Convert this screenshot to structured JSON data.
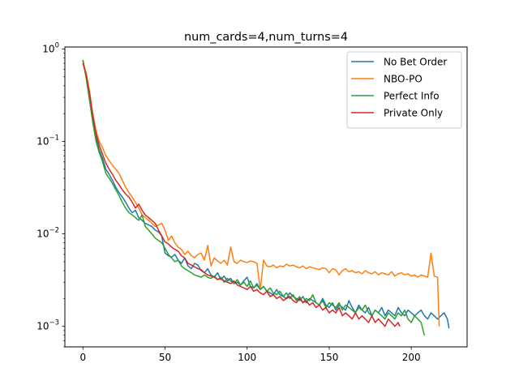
{
  "chart_data": {
    "type": "line",
    "title": "num_cards=4,num_turns=4",
    "xlabel": "",
    "ylabel": "",
    "xlim": [
      -11,
      234
    ],
    "ylim": [
      0.0006,
      1.05
    ],
    "yscale": "log",
    "grid": false,
    "legend_position": "top-right",
    "x_ticks": [
      {
        "value": 0,
        "label": "0"
      },
      {
        "value": 50,
        "label": "50"
      },
      {
        "value": 100,
        "label": "100"
      },
      {
        "value": 150,
        "label": "150"
      },
      {
        "value": 200,
        "label": "200"
      }
    ],
    "y_ticks": [
      {
        "value": 0.001,
        "base": "10",
        "exp": "−3"
      },
      {
        "value": 0.01,
        "base": "10",
        "exp": "−2"
      },
      {
        "value": 0.1,
        "base": "10",
        "exp": "−1"
      },
      {
        "value": 1,
        "base": "10",
        "exp": "0"
      }
    ],
    "series": [
      {
        "name": "No Bet Order",
        "color": "#1f77b4",
        "x": [
          0,
          2,
          4,
          6,
          8,
          10,
          12,
          14,
          16,
          18,
          20,
          22,
          24,
          26,
          28,
          30,
          32,
          34,
          36,
          38,
          40,
          42,
          44,
          46,
          48,
          50,
          52,
          54,
          56,
          58,
          60,
          62,
          64,
          66,
          68,
          70,
          72,
          74,
          76,
          78,
          80,
          82,
          84,
          86,
          88,
          90,
          92,
          94,
          96,
          98,
          100,
          102,
          104,
          106,
          108,
          110,
          112,
          114,
          116,
          118,
          120,
          122,
          124,
          126,
          128,
          130,
          132,
          134,
          136,
          138,
          140,
          142,
          144,
          146,
          148,
          150,
          152,
          154,
          156,
          158,
          160,
          162,
          164,
          166,
          168,
          170,
          172,
          174,
          176,
          178,
          180,
          182,
          184,
          186,
          188,
          190,
          192,
          194,
          196,
          198,
          200,
          202,
          204,
          206,
          208,
          210,
          212,
          214,
          216,
          218,
          220,
          222,
          223
        ],
        "y": [
          0.75,
          0.5,
          0.3,
          0.18,
          0.11,
          0.08,
          0.065,
          0.05,
          0.044,
          0.038,
          0.032,
          0.028,
          0.025,
          0.022,
          0.019,
          0.017,
          0.018,
          0.015,
          0.014,
          0.013,
          0.0125,
          0.012,
          0.011,
          0.0105,
          0.0095,
          0.0062,
          0.0058,
          0.0056,
          0.006,
          0.0052,
          0.0048,
          0.0055,
          0.0045,
          0.0042,
          0.0048,
          0.0046,
          0.004,
          0.0038,
          0.0042,
          0.0036,
          0.0034,
          0.0038,
          0.0032,
          0.0035,
          0.0031,
          0.0033,
          0.0029,
          0.003,
          0.0028,
          0.0031,
          0.0034,
          0.0027,
          0.0026,
          0.0029,
          0.0025,
          0.0027,
          0.0024,
          0.0023,
          0.0022,
          0.0025,
          0.0022,
          0.0021,
          0.002,
          0.0023,
          0.0021,
          0.002,
          0.0019,
          0.0021,
          0.0018,
          0.002,
          0.0019,
          0.0018,
          0.0017,
          0.002,
          0.0017,
          0.0016,
          0.0018,
          0.0015,
          0.0017,
          0.0016,
          0.0015,
          0.0019,
          0.0016,
          0.0014,
          0.0017,
          0.0015,
          0.0014,
          0.0016,
          0.0013,
          0.0015,
          0.0014,
          0.0016,
          0.0013,
          0.0015,
          0.0014,
          0.0013,
          0.0016,
          0.0014,
          0.0013,
          0.0015,
          0.0014,
          0.0013,
          0.0014,
          0.0015,
          0.0013,
          0.0012,
          0.0014,
          0.0013,
          0.0012,
          0.0013,
          0.0014,
          0.0012,
          0.00095
        ]
      },
      {
        "name": "NBO-PO",
        "color": "#ff7f0e",
        "x": [
          0,
          2,
          4,
          6,
          8,
          10,
          12,
          14,
          16,
          18,
          20,
          22,
          24,
          26,
          28,
          30,
          32,
          34,
          36,
          38,
          40,
          42,
          44,
          46,
          48,
          50,
          52,
          54,
          56,
          58,
          60,
          62,
          64,
          66,
          68,
          70,
          72,
          74,
          76,
          78,
          80,
          82,
          84,
          86,
          88,
          90,
          92,
          94,
          96,
          98,
          100,
          102,
          104,
          106,
          108,
          110,
          112,
          114,
          116,
          118,
          120,
          122,
          124,
          126,
          128,
          130,
          132,
          134,
          136,
          138,
          140,
          142,
          144,
          146,
          148,
          150,
          152,
          154,
          156,
          158,
          160,
          162,
          164,
          166,
          168,
          170,
          172,
          174,
          176,
          178,
          180,
          182,
          184,
          186,
          188,
          190,
          192,
          194,
          196,
          198,
          200,
          202,
          204,
          206,
          208,
          210,
          212,
          214,
          216,
          217
        ],
        "y": [
          0.72,
          0.55,
          0.35,
          0.2,
          0.13,
          0.1,
          0.085,
          0.07,
          0.062,
          0.055,
          0.05,
          0.045,
          0.038,
          0.032,
          0.028,
          0.025,
          0.022,
          0.019,
          0.016,
          0.015,
          0.014,
          0.013,
          0.012,
          0.0125,
          0.013,
          0.011,
          0.0085,
          0.0095,
          0.008,
          0.0072,
          0.0068,
          0.006,
          0.0065,
          0.0058,
          0.0055,
          0.006,
          0.0062,
          0.0052,
          0.0075,
          0.0045,
          0.0055,
          0.0051,
          0.0048,
          0.0052,
          0.0046,
          0.0072,
          0.005,
          0.0048,
          0.0052,
          0.005,
          0.0049,
          0.0051,
          0.005,
          0.0048,
          0.0025,
          0.0052,
          0.0045,
          0.0044,
          0.0046,
          0.0043,
          0.0045,
          0.0044,
          0.0047,
          0.0045,
          0.0046,
          0.0044,
          0.0043,
          0.0045,
          0.0042,
          0.0044,
          0.0043,
          0.0042,
          0.0041,
          0.0043,
          0.0042,
          0.0038,
          0.0042,
          0.0041,
          0.0036,
          0.004,
          0.0042,
          0.0039,
          0.004,
          0.0038,
          0.0039,
          0.0037,
          0.004,
          0.0038,
          0.0037,
          0.0039,
          0.0036,
          0.0038,
          0.0037,
          0.0036,
          0.0039,
          0.0035,
          0.0037,
          0.0038,
          0.0036,
          0.0037,
          0.0035,
          0.0036,
          0.0034,
          0.0036,
          0.0035,
          0.0034,
          0.0062,
          0.0035,
          0.0034,
          0.001
        ]
      },
      {
        "name": "Perfect Info",
        "color": "#2ca02c",
        "x": [
          0,
          2,
          4,
          6,
          8,
          10,
          12,
          14,
          16,
          18,
          20,
          22,
          24,
          26,
          28,
          30,
          32,
          34,
          36,
          38,
          40,
          42,
          44,
          46,
          48,
          50,
          52,
          54,
          56,
          58,
          60,
          62,
          64,
          66,
          68,
          70,
          72,
          74,
          76,
          78,
          80,
          82,
          84,
          86,
          88,
          90,
          92,
          94,
          96,
          98,
          100,
          102,
          104,
          106,
          108,
          110,
          112,
          114,
          116,
          118,
          120,
          122,
          124,
          126,
          128,
          130,
          132,
          134,
          136,
          138,
          140,
          142,
          144,
          146,
          148,
          150,
          152,
          154,
          156,
          158,
          160,
          162,
          164,
          166,
          168,
          170,
          172,
          174,
          176,
          178,
          180,
          182,
          184,
          186,
          188,
          190,
          192,
          194,
          196,
          198,
          200,
          202,
          204,
          206,
          208
        ],
        "y": [
          0.76,
          0.48,
          0.28,
          0.16,
          0.1,
          0.075,
          0.06,
          0.045,
          0.04,
          0.035,
          0.03,
          0.026,
          0.022,
          0.019,
          0.017,
          0.016,
          0.015,
          0.014,
          0.016,
          0.012,
          0.011,
          0.01,
          0.009,
          0.0085,
          0.008,
          0.007,
          0.006,
          0.0055,
          0.005,
          0.0052,
          0.0045,
          0.0042,
          0.004,
          0.0038,
          0.0036,
          0.0035,
          0.0034,
          0.0036,
          0.0034,
          0.0033,
          0.0035,
          0.0032,
          0.0034,
          0.003,
          0.0033,
          0.0031,
          0.0029,
          0.0032,
          0.0028,
          0.003,
          0.0027,
          0.0031,
          0.0026,
          0.0028,
          0.0025,
          0.0027,
          0.0024,
          0.0026,
          0.0023,
          0.0022,
          0.0024,
          0.0021,
          0.0023,
          0.002,
          0.0022,
          0.0019,
          0.0021,
          0.0018,
          0.002,
          0.0019,
          0.0022,
          0.0018,
          0.0017,
          0.0019,
          0.0016,
          0.0018,
          0.0017,
          0.0016,
          0.0018,
          0.0015,
          0.0017,
          0.0016,
          0.0015,
          0.0014,
          0.0016,
          0.0015,
          0.0017,
          0.0014,
          0.0013,
          0.0015,
          0.0014,
          0.0013,
          0.0012,
          0.0014,
          0.0013,
          0.0012,
          0.0014,
          0.0013,
          0.0015,
          0.0012,
          0.0011,
          0.0013,
          0.0012,
          0.0011,
          0.0008
        ]
      },
      {
        "name": "Private Only",
        "color": "#d62728",
        "x": [
          0,
          2,
          4,
          6,
          8,
          10,
          12,
          14,
          16,
          18,
          20,
          22,
          24,
          26,
          28,
          30,
          32,
          34,
          36,
          38,
          40,
          42,
          44,
          46,
          48,
          50,
          52,
          54,
          56,
          58,
          60,
          62,
          64,
          66,
          68,
          70,
          72,
          74,
          76,
          78,
          80,
          82,
          84,
          86,
          88,
          90,
          92,
          94,
          96,
          98,
          100,
          102,
          104,
          106,
          108,
          110,
          112,
          114,
          116,
          118,
          120,
          122,
          124,
          126,
          128,
          130,
          132,
          134,
          136,
          138,
          140,
          142,
          144,
          146,
          148,
          150,
          152,
          154,
          156,
          158,
          160,
          162,
          164,
          166,
          168,
          170,
          172,
          174,
          176,
          178,
          180,
          182,
          184,
          186,
          188,
          190,
          192,
          193
        ],
        "y": [
          0.7,
          0.52,
          0.33,
          0.19,
          0.12,
          0.09,
          0.072,
          0.058,
          0.05,
          0.044,
          0.038,
          0.034,
          0.03,
          0.027,
          0.025,
          0.022,
          0.019,
          0.021,
          0.018,
          0.016,
          0.015,
          0.014,
          0.013,
          0.011,
          0.0095,
          0.0082,
          0.0078,
          0.0072,
          0.0068,
          0.0065,
          0.0058,
          0.0055,
          0.0048,
          0.0046,
          0.0044,
          0.0042,
          0.0041,
          0.0038,
          0.0036,
          0.0035,
          0.0034,
          0.0032,
          0.0033,
          0.0031,
          0.003,
          0.0029,
          0.0031,
          0.0028,
          0.0027,
          0.0026,
          0.0025,
          0.0027,
          0.0024,
          0.0025,
          0.0023,
          0.0022,
          0.0024,
          0.0021,
          0.0022,
          0.002,
          0.0021,
          0.0019,
          0.002,
          0.0021,
          0.0019,
          0.0018,
          0.002,
          0.0018,
          0.0019,
          0.0017,
          0.0018,
          0.0016,
          0.0017,
          0.0015,
          0.0016,
          0.0014,
          0.0015,
          0.0014,
          0.0016,
          0.0013,
          0.0014,
          0.0013,
          0.0012,
          0.0014,
          0.0012,
          0.0013,
          0.0012,
          0.0011,
          0.0013,
          0.0011,
          0.0012,
          0.0011,
          0.001,
          0.0012,
          0.0011,
          0.001,
          0.0011,
          0.001
        ]
      }
    ]
  }
}
